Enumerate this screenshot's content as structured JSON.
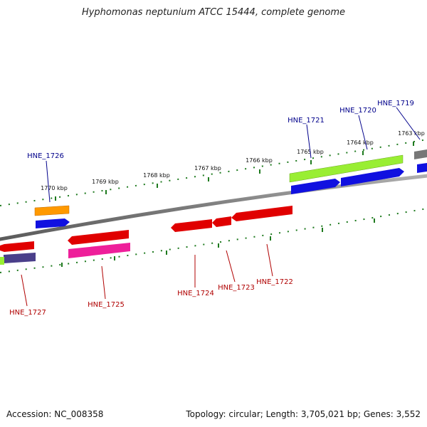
{
  "header": {
    "title": "Hyphomonas neptunium ATCC 15444, complete genome"
  },
  "footer": {
    "accession": "Accession: NC_008358",
    "stats": "Topology: circular; Length: 3,705,021 bp; Genes: 3,552"
  },
  "ticks": {
    "labels": [
      "1770 kbp",
      "1769 kbp",
      "1768 kbp",
      "1767 kbp",
      "1766 kbp",
      "1765 kbp",
      "1764 kbp",
      "1763 kbp"
    ]
  },
  "genes": {
    "upper_labels": [
      "HNE_1726",
      "HNE_1721",
      "HNE_1720",
      "HNE_1719"
    ],
    "lower_labels": [
      "HNE_1727",
      "HNE_1725",
      "HNE_1724",
      "HNE_1723",
      "HNE_1722"
    ]
  },
  "colors": {
    "backbone": "#888888",
    "upper_label": "#00008b",
    "lower_label": "#b00000",
    "tick": "#1e7a1e",
    "red_gene": "#e00000",
    "blue_gene": "#1010e0",
    "green_gene": "#99ee33",
    "orange_gene": "#ff9900",
    "magenta_gene": "#ee1f9a",
    "purple_gene": "#4a3f8a",
    "gray_gene": "#777777"
  }
}
